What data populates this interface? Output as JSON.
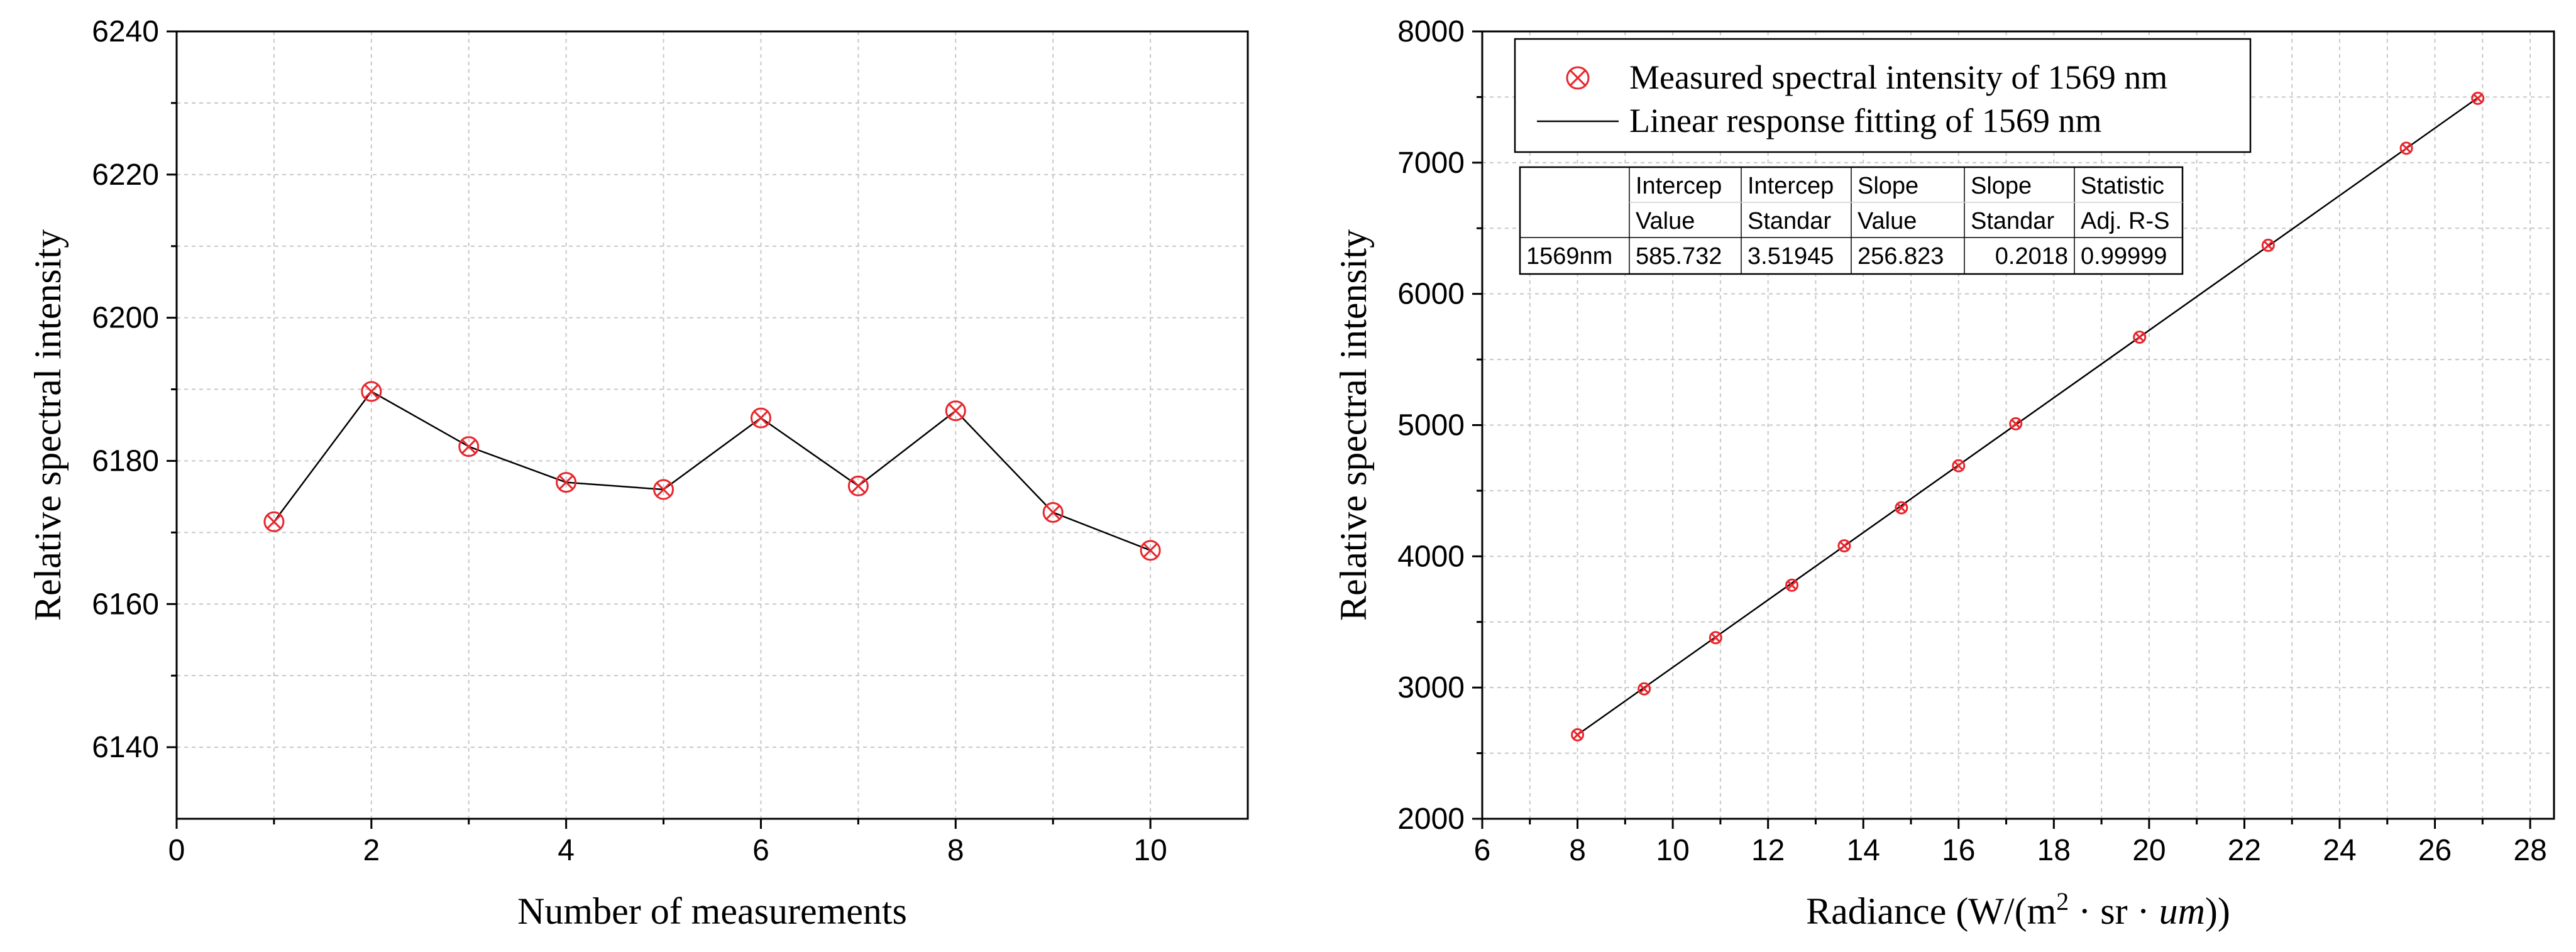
{
  "chart_data": [
    {
      "type": "line",
      "title": "",
      "xlabel": "Number of measurements",
      "ylabel": "Relative spectral intensity",
      "xlim": [
        0,
        11
      ],
      "ylim": [
        6130,
        6240
      ],
      "xticks": [
        0,
        2,
        4,
        6,
        8,
        10
      ],
      "yticks": [
        6140,
        6160,
        6180,
        6200,
        6220,
        6240
      ],
      "x_minor_grid": [
        1,
        3,
        5,
        7,
        9
      ],
      "y_minor_grid": [
        6150,
        6170,
        6190,
        6210,
        6230
      ],
      "grid": true,
      "marker": "circled-x",
      "marker_color": "#e8262c",
      "series": [
        {
          "name": "Relative spectral intensity",
          "x": [
            1,
            2,
            3,
            4,
            5,
            6,
            7,
            8,
            9,
            10
          ],
          "y": [
            6171.5,
            6189.7,
            6182.0,
            6177.0,
            6176.0,
            6186.0,
            6176.5,
            6187.0,
            6172.8,
            6167.5
          ]
        }
      ]
    },
    {
      "type": "scatter",
      "title": "",
      "xlabel_main": "Radiance (W/(m",
      "xlabel_sup": "2",
      "xlabel_mid": " · sr · ",
      "xlabel_unit": "um",
      "xlabel_end": "))",
      "ylabel": "Relative spectral intensity",
      "xlim": [
        6,
        28.5
      ],
      "ylim": [
        2000,
        8000
      ],
      "xticks": [
        6,
        8,
        10,
        12,
        14,
        16,
        18,
        20,
        22,
        24,
        26,
        28
      ],
      "yticks": [
        2000,
        3000,
        4000,
        5000,
        6000,
        7000,
        8000
      ],
      "x_minor_grid": [
        7,
        9,
        11,
        13,
        15,
        17,
        19,
        21,
        23,
        25,
        27
      ],
      "y_minor_grid": [
        2500,
        3500,
        4500,
        5500,
        6500,
        7500
      ],
      "grid": true,
      "legend": {
        "placement": "top-left",
        "entries": [
          {
            "label": "Measured spectral intensity of 1569 nm",
            "kind": "marker"
          },
          {
            "label": "Linear response fitting of 1569 nm",
            "kind": "line"
          }
        ]
      },
      "series": [
        {
          "name": "Measured spectral intensity of 1569 nm",
          "x": [
            8.0,
            9.4,
            10.9,
            12.5,
            13.6,
            14.8,
            16.0,
            17.2,
            19.8,
            22.5,
            25.4,
            26.9
          ],
          "y": [
            2640,
            2990,
            3380,
            3780,
            4080,
            4370,
            4690,
            5010,
            5670,
            6370,
            7110,
            7490
          ]
        }
      ],
      "fit": {
        "name": "Linear response fitting of 1569 nm",
        "intercept": 585.732,
        "slope": 256.823,
        "x_range": [
          8.0,
          26.9
        ]
      },
      "table": {
        "header1": [
          "",
          "Intercep",
          "Intercep",
          "Slope",
          "Slope",
          "Statistic"
        ],
        "header2": [
          "",
          "Value",
          "Standar",
          "Value",
          "Standar",
          "Adj. R-S"
        ],
        "row": [
          "1569nm",
          "585.732",
          "3.51945",
          "256.823",
          "0.2018",
          "0.99999"
        ]
      }
    }
  ]
}
